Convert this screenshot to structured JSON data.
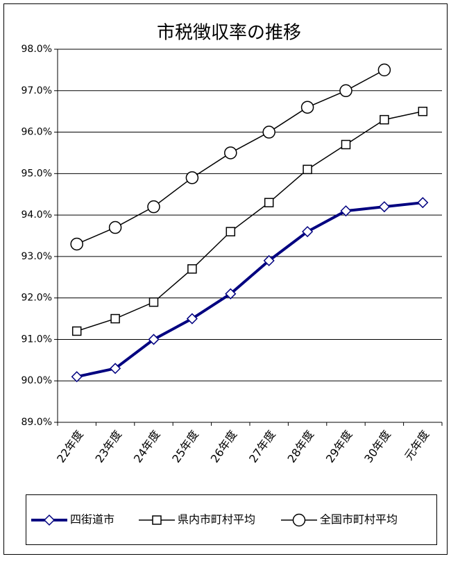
{
  "chart_data": {
    "type": "line",
    "title": "市税徴収率の推移",
    "categories": [
      "22年度",
      "23年度",
      "24年度",
      "25年度",
      "26年度",
      "27年度",
      "28年度",
      "29年度",
      "30年度",
      "元年度"
    ],
    "series": [
      {
        "name": "四街道市",
        "color": "#000080",
        "marker": "diamond",
        "line_width": 4,
        "values": [
          90.1,
          90.3,
          91.0,
          91.5,
          92.1,
          92.9,
          93.6,
          94.1,
          94.2,
          94.3
        ]
      },
      {
        "name": "県内市町村平均",
        "color": "#000000",
        "marker": "square",
        "line_width": 1.5,
        "values": [
          91.2,
          91.5,
          91.9,
          92.7,
          93.6,
          94.3,
          95.1,
          95.7,
          96.3,
          96.5
        ]
      },
      {
        "name": "全国市町村平均",
        "color": "#000000",
        "marker": "circle",
        "line_width": 1.5,
        "values": [
          93.3,
          93.7,
          94.2,
          94.9,
          95.5,
          96.0,
          96.6,
          97.0,
          97.5,
          null
        ]
      }
    ],
    "ylim": [
      89,
      98
    ],
    "yticks": [
      {
        "value": 89,
        "label": "89.0%"
      },
      {
        "value": 90,
        "label": "90.0%"
      },
      {
        "value": 91,
        "label": "91.0%"
      },
      {
        "value": 92,
        "label": "92.0%"
      },
      {
        "value": 93,
        "label": "93.0%"
      },
      {
        "value": 94,
        "label": "94.0%"
      },
      {
        "value": 95,
        "label": "95.0%"
      },
      {
        "value": 96,
        "label": "96.0%"
      },
      {
        "value": 97,
        "label": "97.0%"
      },
      {
        "value": 98,
        "label": "98.0%"
      }
    ],
    "grid": true,
    "legend": "bottom"
  }
}
